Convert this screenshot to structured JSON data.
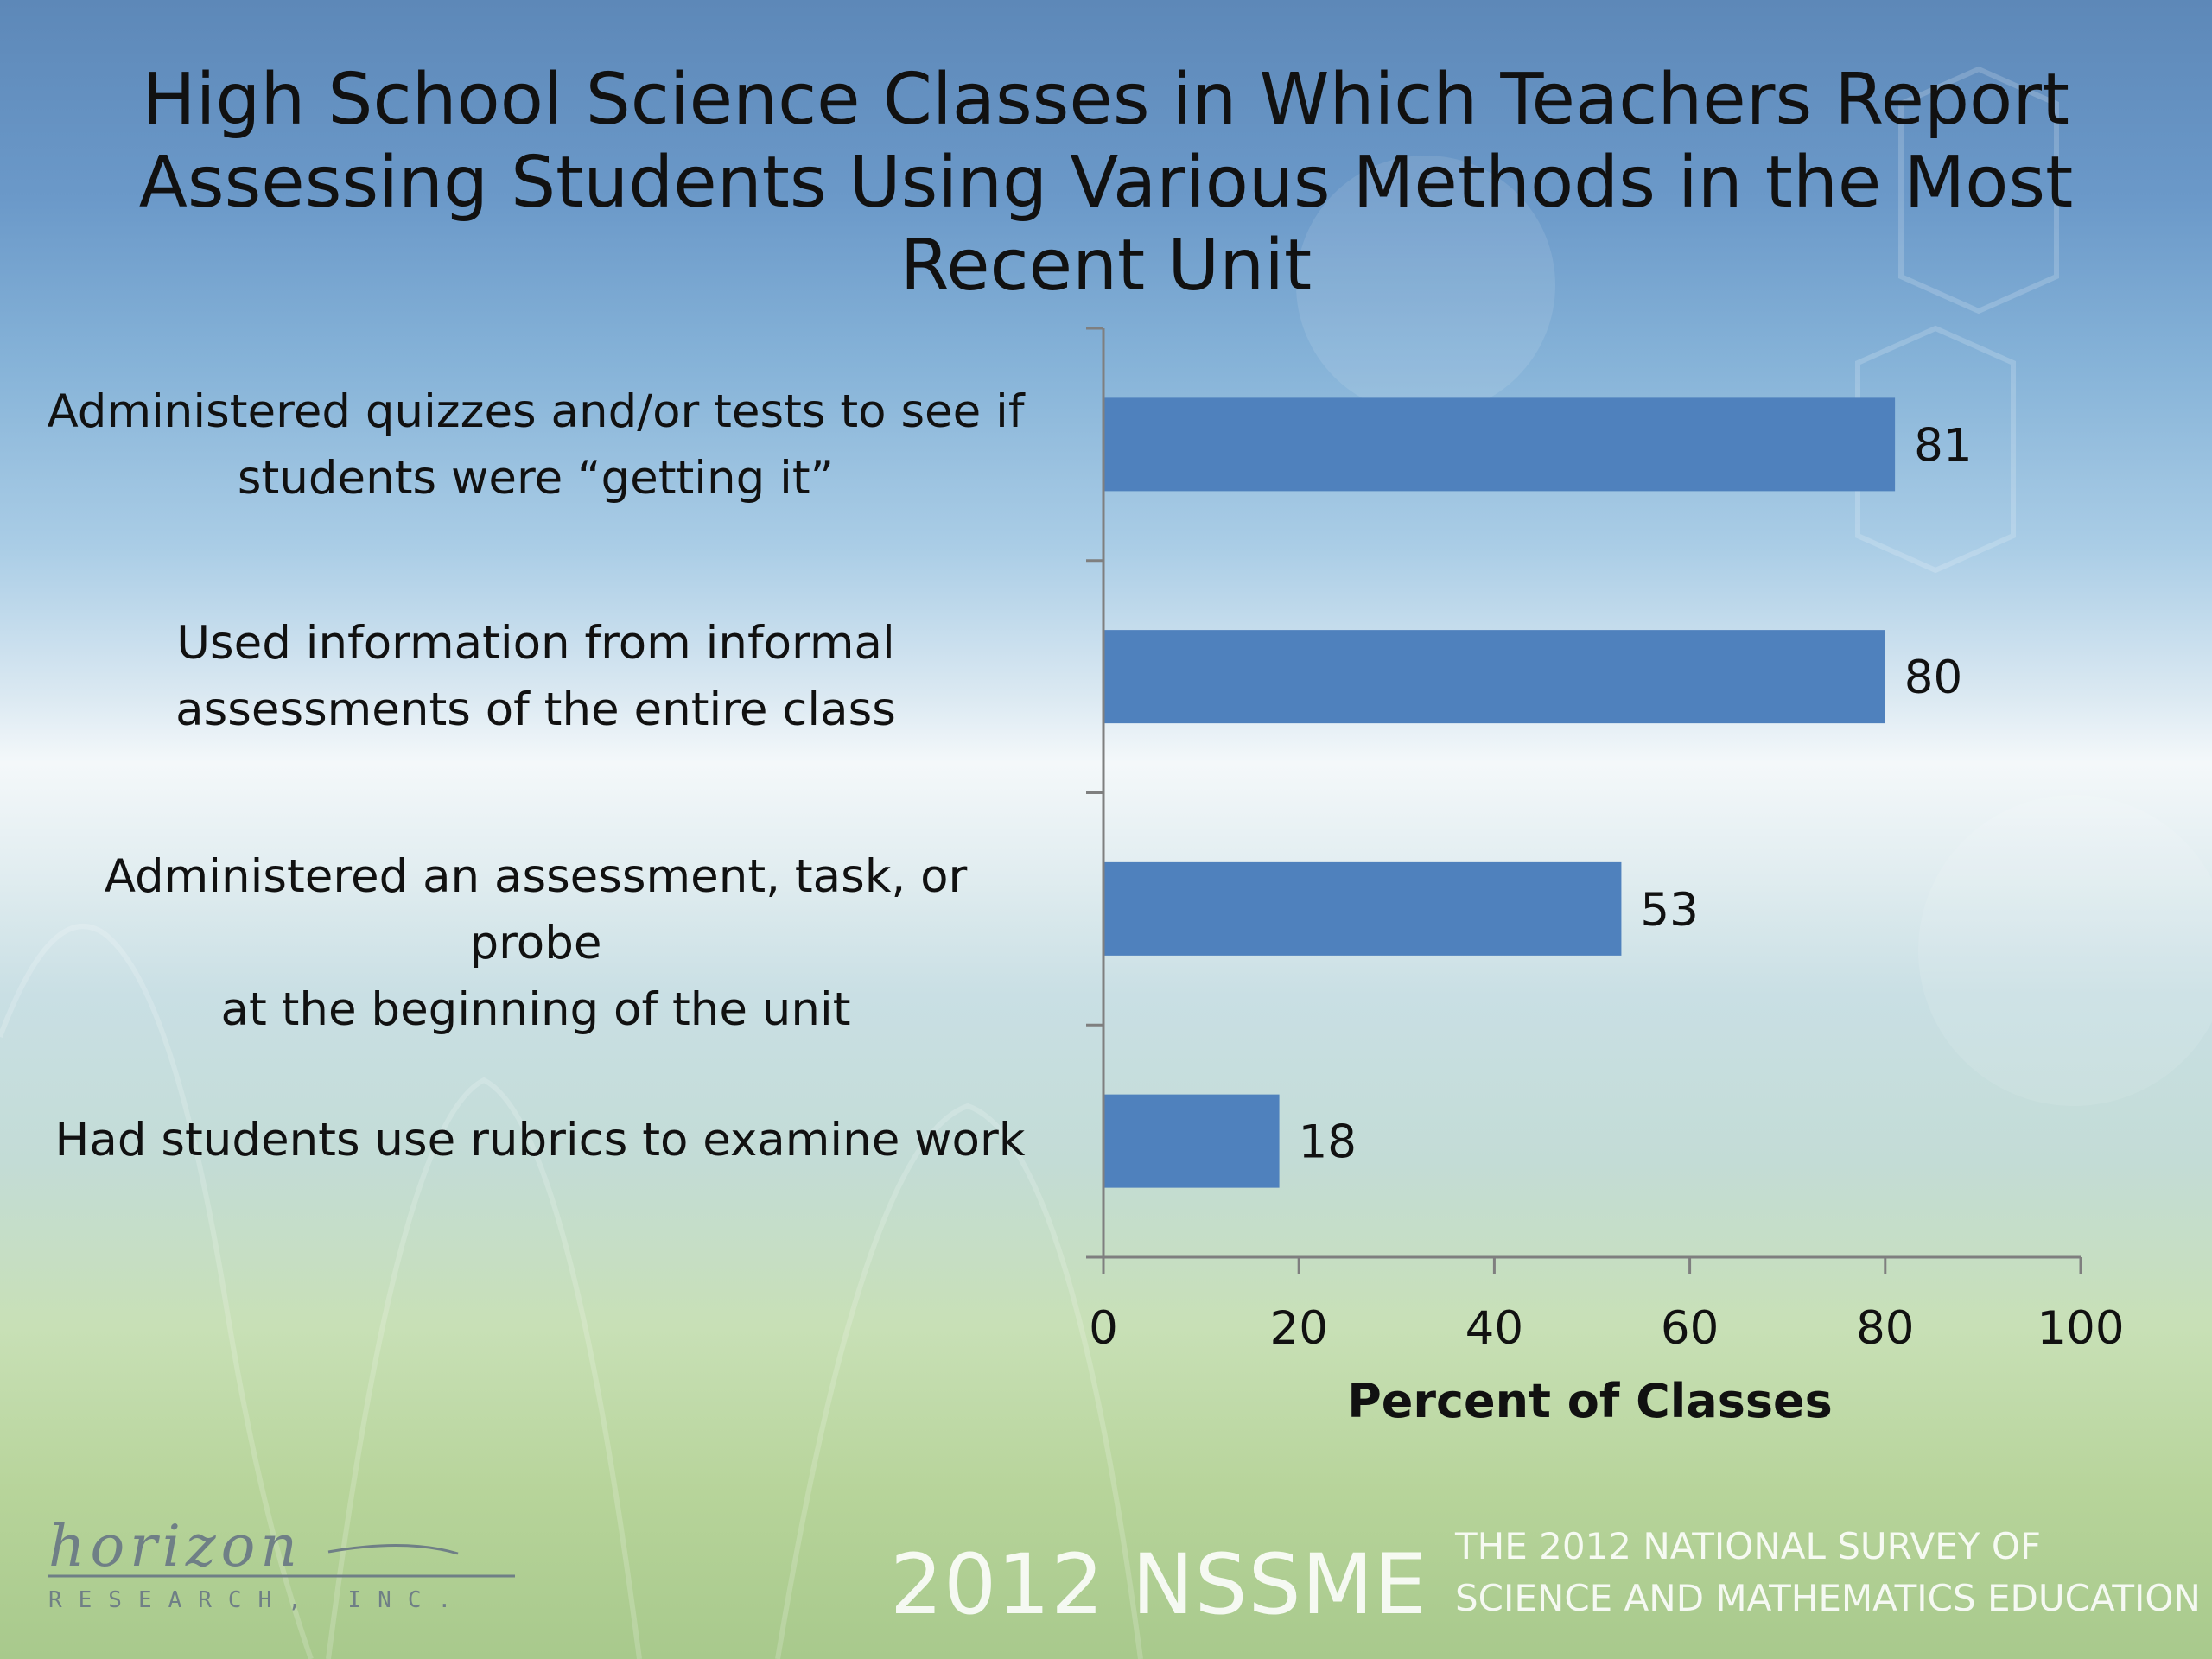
{
  "title_lines": [
    "High School Science Classes in Which Teachers Report",
    "Assessing Students Using Various Methods in the Most",
    "Recent Unit"
  ],
  "category_lines": [
    [
      "Administered quizzes and/or tests to see if",
      "students were “getting it”"
    ],
    [
      "Used information from informal",
      "assessments of the entire class"
    ],
    [
      "Administered an assessment, task, or probe",
      "at the beginning of the unit"
    ],
    [
      "Had students use rubrics to examine work"
    ]
  ],
  "chart_data": {
    "type": "bar",
    "orientation": "horizontal",
    "categories": [
      "Administered quizzes and/or tests to see if students were “getting it”",
      "Used information from informal assessments of the entire class",
      "Administered an assessment, task, or probe at the beginning of the unit",
      "Had students use rubrics to examine work"
    ],
    "values": [
      81,
      80,
      53,
      18
    ],
    "xlabel": "Percent of Classes",
    "xlim": [
      0,
      100
    ],
    "xticks": [
      "0",
      "20",
      "40",
      "60",
      "80",
      "100"
    ],
    "bar_color": "#4f81bd",
    "data_labels": true,
    "grid": false,
    "legend": "none"
  },
  "footer": {
    "nssme": "2012 NSSME",
    "subtitle_lines": [
      "THE 2012 NATIONAL SURVEY OF",
      "SCIENCE AND MATHEMATICS EDUCATION"
    ]
  },
  "logo": {
    "wordmark": "horizon",
    "subtext": "RESEARCH, INC."
  }
}
